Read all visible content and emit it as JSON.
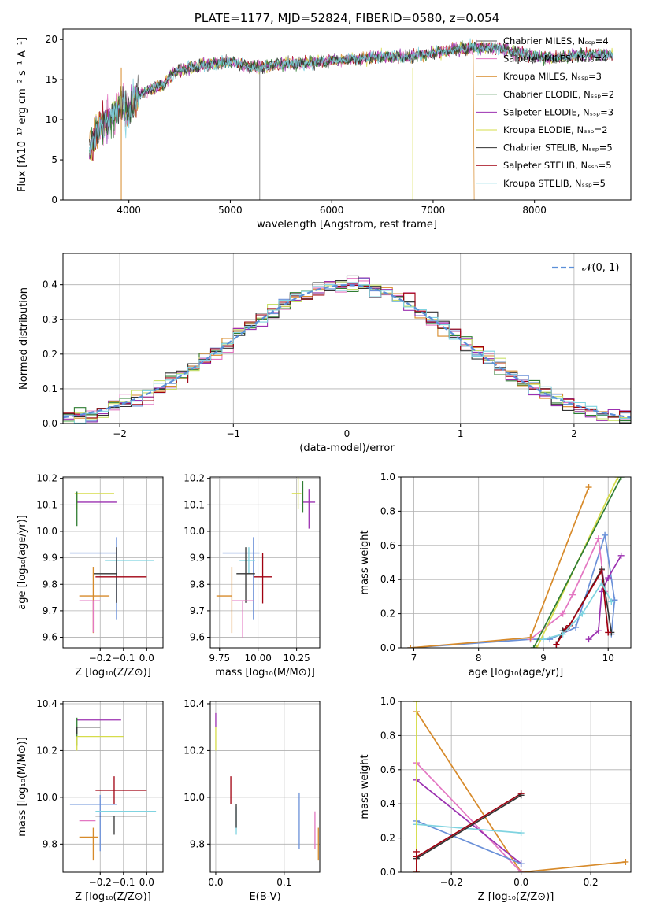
{
  "chart_data": [
    {
      "type": "line",
      "title": "PLATE=1177, MJD=52824, FIBERID=0580, z=0.054",
      "xlabel": "wavelength [Angstrom, rest frame]",
      "ylabel": "Flux [fλ10⁻¹⁷ erg cm⁻² s⁻¹ A⁻¹]",
      "xlim": [
        3350,
        8950
      ],
      "ylim": [
        0,
        21.3
      ],
      "xticks": [
        4000,
        5000,
        6000,
        7000,
        8000
      ],
      "yticks": [
        0,
        5,
        10,
        15,
        20
      ],
      "grid": false,
      "legend_position": "right",
      "spectrum_envelope": {
        "x": [
          3610,
          3700,
          3800,
          3880,
          3930,
          3970,
          4050,
          4150,
          4250,
          4350,
          4450,
          4600,
          4800,
          5000,
          5200,
          5300,
          5500,
          5700,
          5900,
          6100,
          6300,
          6500,
          6700,
          6900,
          7100,
          7300,
          7400,
          7600,
          7800,
          8000,
          8200,
          8400,
          8600,
          8780
        ],
        "y": [
          6,
          9,
          10,
          11,
          12,
          10.5,
          12.5,
          13.5,
          14,
          14.5,
          16,
          16.5,
          17,
          17.3,
          16.6,
          16.5,
          17,
          17,
          17.3,
          17.4,
          17.6,
          17.9,
          17.8,
          18.1,
          18.5,
          18.9,
          19,
          19,
          18.5,
          17.9,
          17.7,
          18,
          18.2,
          18.1
        ]
      },
      "series": [
        {
          "name": "Chabrier MILES, N_SSP=4",
          "color": "#5f5f5f"
        },
        {
          "name": "Salpeter MILES, N_SSP=4",
          "color": "#e377c2"
        },
        {
          "name": "Kroupa MILES, N_SSP=3",
          "color": "#d78a2a"
        },
        {
          "name": "Chabrier ELODIE, N_SSP=2",
          "color": "#2f7d32"
        },
        {
          "name": "Salpeter ELODIE, N_SSP=3",
          "color": "#9b30b0"
        },
        {
          "name": "Kroupa ELODIE, N_SSP=2",
          "color": "#d6dc4a"
        },
        {
          "name": "Chabrier STELIB, N_SSP=5",
          "color": "#333333"
        },
        {
          "name": "Salpeter STELIB, N_SSP=5",
          "color": "#a00010"
        },
        {
          "name": "Kroupa STELIB, N_SSP=5",
          "color": "#7fd3e0"
        }
      ]
    },
    {
      "type": "line",
      "xlabel": "(data-model)/error",
      "ylabel": "Normed distribution",
      "xlim": [
        -2.5,
        2.5
      ],
      "ylim": [
        0,
        0.49
      ],
      "xticks": [
        -2,
        -1,
        0,
        1,
        2
      ],
      "yticks": [
        0.0,
        0.1,
        0.2,
        0.3,
        0.4
      ],
      "grid": true,
      "legend_position": "top-right",
      "legend": "𝒩(0, 1)",
      "curve": {
        "name": "N(0,1)",
        "color": "#5b8fd8",
        "style": "dashed"
      },
      "histogram_colors": [
        "#6a90d8",
        "#e377c2",
        "#d78a2a",
        "#2f7d32",
        "#9b30b0",
        "#c8e06a",
        "#333333",
        "#a00010",
        "#7fd3e0"
      ]
    },
    {
      "type": "scatter",
      "xlabel": "Z [log₁₀(Z/Z⊙)]",
      "ylabel": "age  [log₁₀(age/yr)]",
      "xlim": [
        -0.36,
        0.07
      ],
      "ylim": [
        9.56,
        10.205
      ],
      "xticks": [
        -0.2,
        -0.1,
        0.0
      ],
      "yticks": [
        9.6,
        9.7,
        9.8,
        9.9,
        10.0,
        10.1,
        10.2
      ],
      "grid": true,
      "errorbars": [
        {
          "color": "#6a90d8",
          "x": -0.13,
          "y": 9.918,
          "xerr": [
            0.2,
            0
          ],
          "yerr": [
            0.25,
            0.06
          ]
        },
        {
          "color": "#7fd3e0",
          "x": -0.14,
          "y": 9.89,
          "xerr": [
            0.04,
            0.17
          ],
          "yerr": [
            0.0,
            0.0
          ]
        },
        {
          "color": "#333333",
          "x": -0.13,
          "y": 9.84,
          "xerr": [
            0.1,
            0.0
          ],
          "yerr": [
            0.11,
            0.1
          ]
        },
        {
          "color": "#a00010",
          "x": -0.14,
          "y": 9.828,
          "xerr": [
            0.08,
            0.14
          ],
          "yerr": [
            0.0,
            0.0
          ]
        },
        {
          "color": "#d78a2a",
          "x": -0.23,
          "y": 9.756,
          "xerr": [
            0.06,
            0.07
          ],
          "yerr": [
            0.14,
            0.11
          ]
        },
        {
          "color": "#e377c2",
          "x": -0.23,
          "y": 9.738,
          "xerr": [
            0.06,
            0.03
          ],
          "yerr": [
            0.12,
            0.0
          ]
        },
        {
          "color": "#d6dc4a",
          "x": -0.3,
          "y": 10.143,
          "xerr": [
            0.01,
            0.16
          ],
          "yerr": [
            0.06,
            0.0
          ]
        },
        {
          "color": "#9b30b0",
          "x": -0.3,
          "y": 10.11,
          "xerr": [
            0.0,
            0.17
          ],
          "yerr": [
            0.0,
            0.0
          ]
        },
        {
          "color": "#2f7d32",
          "x": -0.3,
          "y": 10.09,
          "xerr": [
            0.0,
            0.0
          ],
          "yerr": [
            0.07,
            0.06
          ]
        }
      ]
    },
    {
      "type": "scatter",
      "xlabel": "mass [log₁₀(M/M⊙)]",
      "ylabel": "",
      "xlim": [
        9.69,
        10.4
      ],
      "ylim": [
        9.56,
        10.205
      ],
      "xticks": [
        9.75,
        10.0,
        10.25
      ],
      "yticks": [
        9.6,
        9.7,
        9.8,
        9.9,
        10.0,
        10.1,
        10.2
      ],
      "grid": true,
      "errorbars": [
        {
          "color": "#6a90d8",
          "x": 9.97,
          "y": 9.918,
          "xerr": [
            0.2,
            0.04
          ],
          "yerr": [
            0.25,
            0.06
          ]
        },
        {
          "color": "#7fd3e0",
          "x": 9.94,
          "y": 9.89,
          "xerr": [
            0.06,
            0.04
          ],
          "yerr": [
            0.05,
            0.05
          ]
        },
        {
          "color": "#333333",
          "x": 9.92,
          "y": 9.84,
          "xerr": [
            0.06,
            0.06
          ],
          "yerr": [
            0.11,
            0.1
          ]
        },
        {
          "color": "#a00010",
          "x": 10.03,
          "y": 9.828,
          "xerr": [
            0.06,
            0.06
          ],
          "yerr": [
            0.1,
            0.09
          ]
        },
        {
          "color": "#d78a2a",
          "x": 9.83,
          "y": 9.756,
          "xerr": [
            0.1,
            0.0
          ],
          "yerr": [
            0.14,
            0.11
          ]
        },
        {
          "color": "#e377c2",
          "x": 9.9,
          "y": 9.738,
          "xerr": [
            0.07,
            0.07
          ],
          "yerr": [
            0.14,
            0.0
          ]
        },
        {
          "color": "#d6dc4a",
          "x": 10.26,
          "y": 10.143,
          "xerr": [
            0.04,
            0.02
          ],
          "yerr": [
            0.06,
            0.06
          ]
        },
        {
          "color": "#9b30b0",
          "x": 10.33,
          "y": 10.11,
          "xerr": [
            0.04,
            0.04
          ],
          "yerr": [
            0.1,
            0.05
          ]
        },
        {
          "color": "#2f7d32",
          "x": 10.29,
          "y": 10.13,
          "xerr": [
            0.0,
            0.0
          ],
          "yerr": [
            0.06,
            0.06
          ]
        }
      ]
    },
    {
      "type": "line",
      "xlabel": "age  [log₁₀(age/yr)]",
      "ylabel": "mass weight",
      "xlim": [
        6.8,
        10.35
      ],
      "ylim": [
        0,
        1.0
      ],
      "xticks": [
        7,
        8,
        9,
        10
      ],
      "yticks": [
        0.0,
        0.2,
        0.4,
        0.6,
        0.8,
        1.0
      ],
      "grid": true,
      "series": [
        {
          "color": "#6a90d8",
          "x": [
            6.95,
            8.8,
            9.1,
            9.5,
            9.95,
            10.1,
            10.05
          ],
          "y": [
            0.0,
            0.05,
            0.05,
            0.12,
            0.66,
            0.28,
            0.08
          ]
        },
        {
          "color": "#e377c2",
          "x": [
            8.8,
            9.3,
            9.45,
            9.85,
            9.95
          ],
          "y": [
            0.05,
            0.2,
            0.31,
            0.64,
            0.33
          ]
        },
        {
          "color": "#d78a2a",
          "x": [
            6.95,
            8.8,
            9.7
          ],
          "y": [
            0.0,
            0.06,
            0.94
          ]
        },
        {
          "color": "#9b30b0",
          "x": [
            9.7,
            9.85,
            9.9,
            10.0,
            10.2
          ],
          "y": [
            0.05,
            0.1,
            0.33,
            0.41,
            0.54
          ]
        },
        {
          "color": "#d6dc4a",
          "x": [
            8.9,
            10.15
          ],
          "y": [
            0.0,
            1.0
          ]
        },
        {
          "color": "#2f7d32",
          "x": [
            8.85,
            10.2
          ],
          "y": [
            0.0,
            1.0
          ]
        },
        {
          "color": "#333333",
          "x": [
            9.2,
            9.3,
            9.4,
            9.9,
            10.05
          ],
          "y": [
            0.02,
            0.1,
            0.13,
            0.46,
            0.09
          ]
        },
        {
          "color": "#a00010",
          "x": [
            9.2,
            9.35,
            9.4,
            9.9,
            10.0
          ],
          "y": [
            0.02,
            0.11,
            0.13,
            0.45,
            0.09
          ]
        },
        {
          "color": "#7fd3e0",
          "x": [
            9.0,
            9.3,
            9.6,
            9.9,
            10.05
          ],
          "y": [
            0.05,
            0.08,
            0.2,
            0.38,
            0.27
          ]
        }
      ]
    },
    {
      "type": "scatter",
      "xlabel": "Z [log₁₀(Z/Z⊙)]",
      "ylabel": "mass [log₁₀(M/M⊙)]",
      "xlim": [
        -0.36,
        0.07
      ],
      "ylim": [
        9.68,
        10.41
      ],
      "xticks": [
        -0.2,
        -0.1,
        0.0
      ],
      "yticks": [
        9.8,
        10.0,
        10.2,
        10.4
      ],
      "grid": true,
      "errorbars": [
        {
          "color": "#9b30b0",
          "x": -0.3,
          "y": 10.33,
          "xerr": [
            0.0,
            0.19
          ],
          "yerr": [
            0.0,
            0.0
          ]
        },
        {
          "color": "#2f7d32",
          "x": -0.3,
          "y": 10.28,
          "xerr": [
            0.0,
            0.0
          ],
          "yerr": [
            0.06,
            0.06
          ]
        },
        {
          "color": "#333333",
          "x": -0.3,
          "y": 10.3,
          "xerr": [
            0.0,
            0.1
          ],
          "yerr": [
            0.03,
            0.0
          ]
        },
        {
          "color": "#d6dc4a",
          "x": -0.3,
          "y": 10.26,
          "xerr": [
            0.0,
            0.2
          ],
          "yerr": [
            0.06,
            0.0
          ]
        },
        {
          "color": "#a00010",
          "x": -0.14,
          "y": 10.03,
          "xerr": [
            0.08,
            0.14
          ],
          "yerr": [
            0.06,
            0.06
          ]
        },
        {
          "color": "#6a90d8",
          "x": -0.2,
          "y": 9.97,
          "xerr": [
            0.13,
            0.07
          ],
          "yerr": [
            0.2,
            0.04
          ]
        },
        {
          "color": "#7fd3e0",
          "x": -0.14,
          "y": 9.94,
          "xerr": [
            0.08,
            0.18
          ],
          "yerr": [
            0.0,
            0.0
          ]
        },
        {
          "color": "#333333",
          "x": -0.14,
          "y": 9.92,
          "xerr": [
            0.08,
            0.14
          ],
          "yerr": [
            0.08,
            0.0
          ]
        },
        {
          "color": "#e377c2",
          "x": -0.25,
          "y": 9.9,
          "xerr": [
            0.04,
            0.03
          ],
          "yerr": [
            0.0,
            0.0
          ]
        },
        {
          "color": "#d78a2a",
          "x": -0.23,
          "y": 9.83,
          "xerr": [
            0.06,
            0.02
          ],
          "yerr": [
            0.1,
            0.04
          ]
        }
      ]
    },
    {
      "type": "scatter",
      "xlabel": "E(B-V)",
      "ylabel": "",
      "xlim": [
        -0.008,
        0.152
      ],
      "ylim": [
        9.68,
        10.41
      ],
      "xticks": [
        0.0,
        0.1
      ],
      "yticks": [
        9.8,
        10.0,
        10.2,
        10.4
      ],
      "grid": true,
      "errorbars": [
        {
          "color": "#9b30b0",
          "x": 0.0,
          "y": 10.33,
          "yerr": [
            0.03,
            0.03
          ]
        },
        {
          "color": "#d6dc4a",
          "x": 0.0,
          "y": 10.25,
          "yerr": [
            0.05,
            0.05
          ]
        },
        {
          "color": "#a00010",
          "x": 0.022,
          "y": 10.03,
          "yerr": [
            0.06,
            0.06
          ]
        },
        {
          "color": "#7fd3e0",
          "x": 0.03,
          "y": 9.9,
          "yerr": [
            0.06,
            0.06
          ]
        },
        {
          "color": "#333333",
          "x": 0.03,
          "y": 9.92,
          "yerr": [
            0.05,
            0.05
          ]
        },
        {
          "color": "#6a90d8",
          "x": 0.122,
          "y": 9.9,
          "yerr": [
            0.12,
            0.12
          ]
        },
        {
          "color": "#e377c2",
          "x": 0.145,
          "y": 9.86,
          "yerr": [
            0.08,
            0.08
          ]
        },
        {
          "color": "#d78a2a",
          "x": 0.15,
          "y": 9.8,
          "yerr": [
            0.07,
            0.07
          ]
        }
      ]
    },
    {
      "type": "line",
      "xlabel": "Z [log₁₀(Z/Z⊙)]",
      "ylabel": "mass weight",
      "xlim": [
        -0.345,
        0.315
      ],
      "ylim": [
        0,
        1.0
      ],
      "xticks": [
        -0.2,
        0.0,
        0.2
      ],
      "yticks": [
        0.0,
        0.2,
        0.4,
        0.6,
        0.8,
        1.0
      ],
      "grid": true,
      "series": [
        {
          "color": "#d78a2a",
          "x": [
            -0.3,
            0.0,
            0.3
          ],
          "y": [
            0.94,
            0.0,
            0.06
          ]
        },
        {
          "color": "#e377c2",
          "x": [
            -0.3,
            0.0
          ],
          "y": [
            0.64,
            0.0
          ]
        },
        {
          "color": "#9b30b0",
          "x": [
            -0.3,
            0.0
          ],
          "y": [
            0.54,
            0.05
          ]
        },
        {
          "color": "#6a90d8",
          "x": [
            -0.3,
            0.0
          ],
          "y": [
            0.3,
            0.05
          ]
        },
        {
          "color": "#7fd3e0",
          "x": [
            -0.3,
            0.0
          ],
          "y": [
            0.28,
            0.23
          ]
        },
        {
          "color": "#a00010",
          "x": [
            -0.3,
            0.0
          ],
          "y": [
            0.09,
            0.46
          ]
        },
        {
          "color": "#333333",
          "x": [
            -0.3,
            0.0
          ],
          "y": [
            0.08,
            0.45
          ]
        },
        {
          "color": "#d6dc4a",
          "x": [
            -0.3,
            -0.3
          ],
          "y": [
            0.0,
            1.0
          ]
        },
        {
          "color": "#a00010",
          "x": [
            -0.3,
            -0.3
          ],
          "y": [
            0.0,
            0.12
          ]
        }
      ]
    }
  ]
}
